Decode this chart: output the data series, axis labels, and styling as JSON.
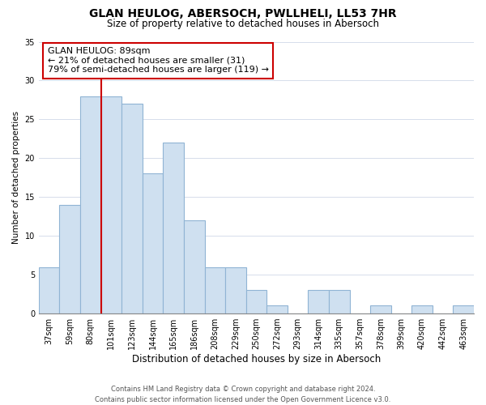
{
  "title": "GLAN HEULOG, ABERSOCH, PWLLHELI, LL53 7HR",
  "subtitle": "Size of property relative to detached houses in Abersoch",
  "xlabel": "Distribution of detached houses by size in Abersoch",
  "ylabel": "Number of detached properties",
  "categories": [
    "37sqm",
    "59sqm",
    "80sqm",
    "101sqm",
    "123sqm",
    "144sqm",
    "165sqm",
    "186sqm",
    "208sqm",
    "229sqm",
    "250sqm",
    "272sqm",
    "293sqm",
    "314sqm",
    "335sqm",
    "357sqm",
    "378sqm",
    "399sqm",
    "420sqm",
    "442sqm",
    "463sqm"
  ],
  "values": [
    6,
    14,
    28,
    28,
    27,
    18,
    22,
    12,
    6,
    6,
    3,
    1,
    0,
    3,
    3,
    0,
    1,
    0,
    1,
    0,
    1
  ],
  "bar_color": "#cfe0f0",
  "bar_edge_color": "#90b4d4",
  "vline_x_index": 2,
  "vline_color": "#cc0000",
  "annotation_line1": "GLAN HEULOG: 89sqm",
  "annotation_line2": "← 21% of detached houses are smaller (31)",
  "annotation_line3": "79% of semi-detached houses are larger (119) →",
  "annotation_box_color": "white",
  "annotation_box_edge_color": "#cc0000",
  "ylim": [
    0,
    35
  ],
  "yticks": [
    0,
    5,
    10,
    15,
    20,
    25,
    30,
    35
  ],
  "footer_line1": "Contains HM Land Registry data © Crown copyright and database right 2024.",
  "footer_line2": "Contains public sector information licensed under the Open Government Licence v3.0.",
  "title_fontsize": 10,
  "subtitle_fontsize": 8.5,
  "xlabel_fontsize": 8.5,
  "ylabel_fontsize": 7.5,
  "tick_fontsize": 7,
  "footer_fontsize": 6,
  "annotation_fontsize": 8
}
